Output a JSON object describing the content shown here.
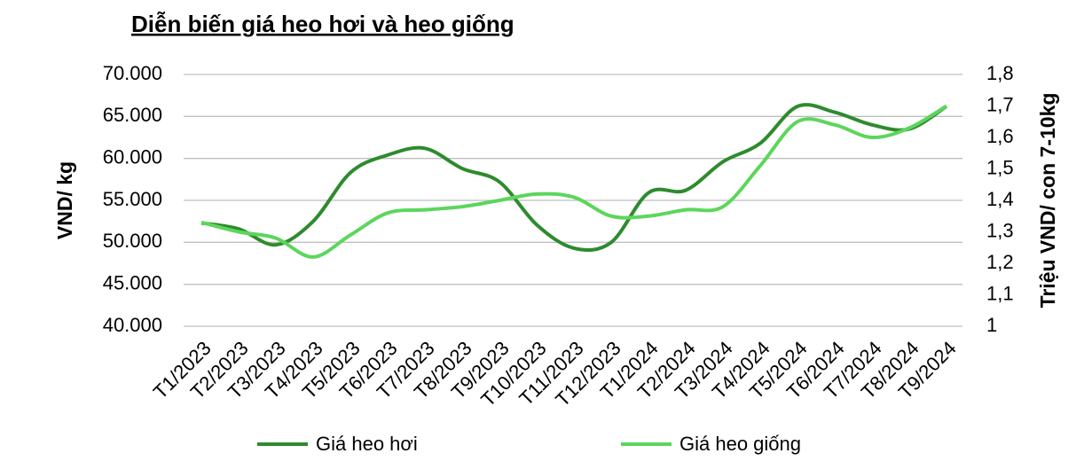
{
  "chart_data": {
    "type": "line",
    "title": "Diễn biến giá heo hơi và heo giống",
    "categories": [
      "T1/2023",
      "T2/2023",
      "T3/2023",
      "T4/2023",
      "T5/2023",
      "T6/2023",
      "T7/2023",
      "T8/2023",
      "T9/2023",
      "T10/2023",
      "T11/2023",
      "T12/2023",
      "T1/2024",
      "T2/2024",
      "T3/2024",
      "T4/2024",
      "T5/2024",
      "T6/2024",
      "T7/2024",
      "T8/2024",
      "T9/2024"
    ],
    "series": [
      {
        "name": "Giá heo hơi",
        "color": "#2e8b2e",
        "values": [
          52300,
          51600,
          49700,
          52500,
          58300,
          60400,
          61200,
          58800,
          57200,
          52100,
          49300,
          50000,
          55900,
          56200,
          59600,
          61800,
          66200,
          65500,
          64000,
          63500,
          66200
        ]
      },
      {
        "name": "Giá heo giống",
        "color": "#5cd65c",
        "axis": "y2",
        "values": [
          1.33,
          1.3,
          1.28,
          1.22,
          1.29,
          1.36,
          1.37,
          1.38,
          1.4,
          1.42,
          1.41,
          1.35,
          1.35,
          1.37,
          1.38,
          1.51,
          1.65,
          1.64,
          1.6,
          1.63,
          1.7
        ]
      }
    ],
    "ylabel": "VND/ kg",
    "y2label": "Triệu VND/ con 7-10kg",
    "ylim": [
      40000,
      70000
    ],
    "yticks": [
      {
        "value": 40000,
        "label": "40.000"
      },
      {
        "value": 45000,
        "label": "45.000"
      },
      {
        "value": 50000,
        "label": "50.000"
      },
      {
        "value": 55000,
        "label": "55.000"
      },
      {
        "value": 60000,
        "label": "60.000"
      },
      {
        "value": 65000,
        "label": "65.000"
      },
      {
        "value": 70000,
        "label": "70.000"
      }
    ],
    "y2lim": [
      1,
      1.8
    ],
    "y2ticks": [
      1,
      {
        "value": 1.1,
        "label": "1,1"
      },
      {
        "value": 1.2,
        "label": "1,2"
      },
      {
        "value": 1.3,
        "label": "1,3"
      },
      {
        "value": 1.4,
        "label": "1,4"
      },
      {
        "value": 1.5,
        "label": "1,5"
      },
      {
        "value": 1.6,
        "label": "1,6"
      },
      {
        "value": 1.7,
        "label": "1,7"
      },
      {
        "value": 1.8,
        "label": "1,8"
      }
    ],
    "grid": true,
    "legend": "bottom"
  }
}
